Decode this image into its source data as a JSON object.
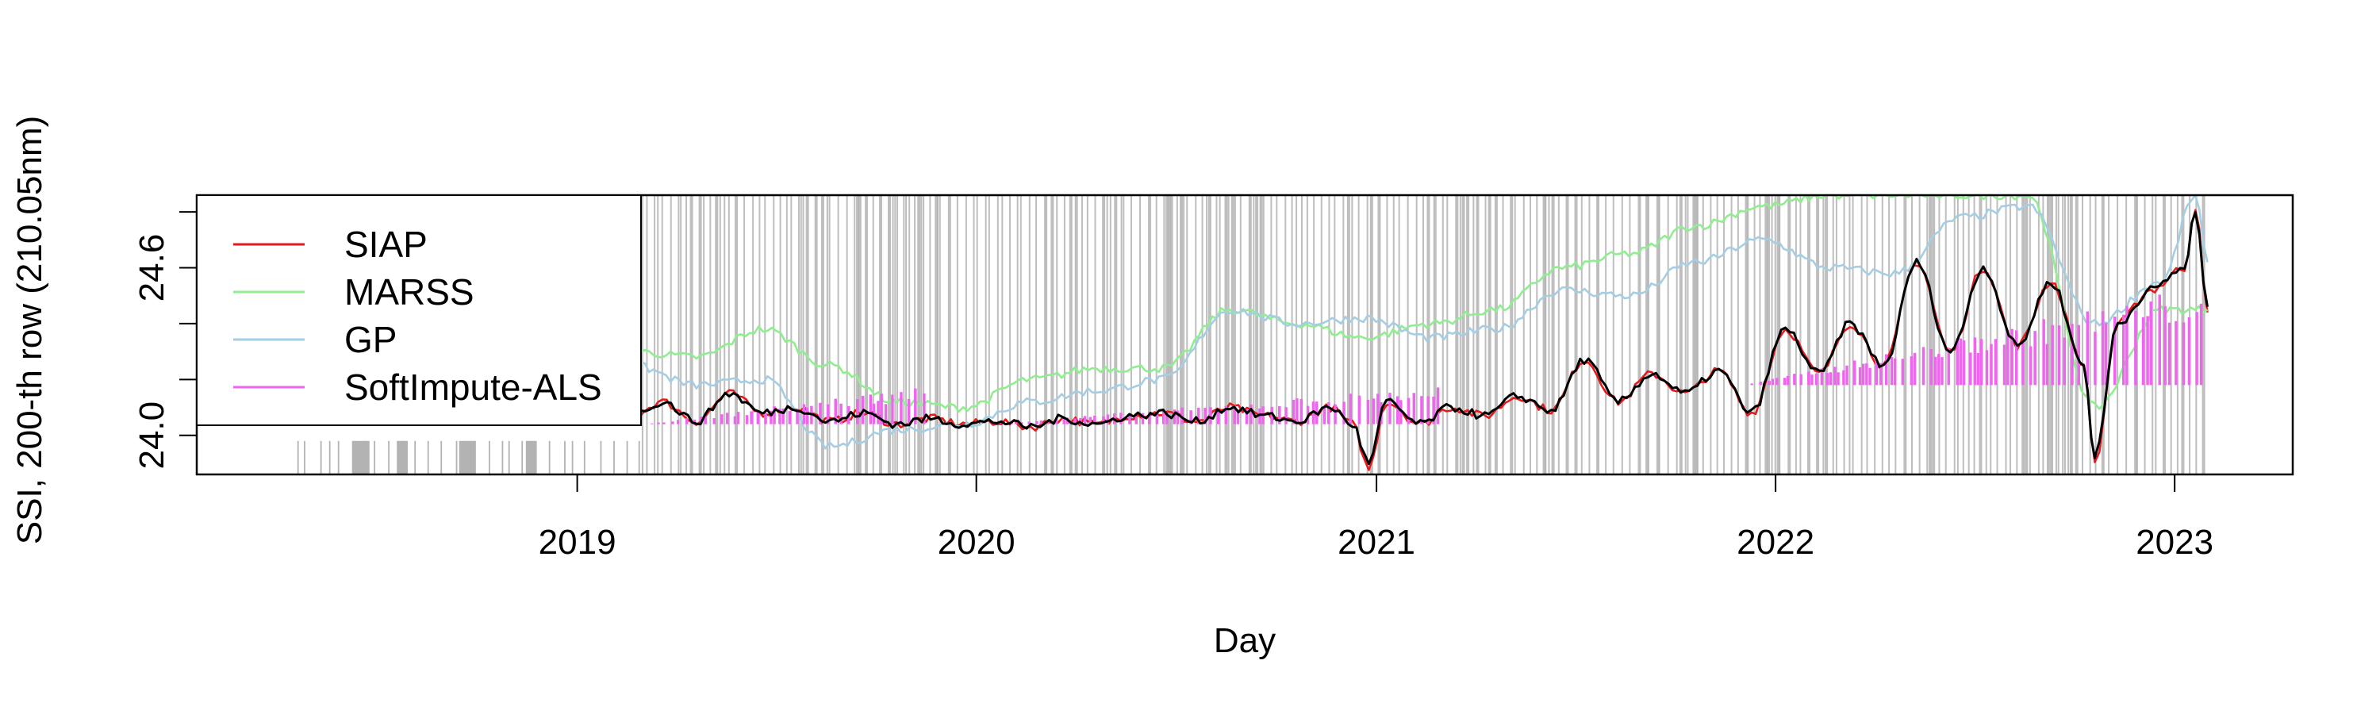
{
  "chart_data": {
    "type": "line",
    "xlabel": "Day",
    "ylabel": "SSI, 200-th row (210.05nm)",
    "x_type": "date",
    "xlim": [
      "2018-01-18",
      "2023-04-19"
    ],
    "ylim": [
      23.86,
      24.86
    ],
    "x_ticks": [
      {
        "date": "2019-01-01",
        "label": "2019"
      },
      {
        "date": "2020-01-01",
        "label": "2020"
      },
      {
        "date": "2021-01-01",
        "label": "2021"
      },
      {
        "date": "2022-01-01",
        "label": "2022"
      },
      {
        "date": "2023-01-01",
        "label": "2023"
      }
    ],
    "y_ticks": [
      {
        "value": 24.0,
        "label": "24.0"
      },
      {
        "value": 24.6,
        "label": "24.6"
      }
    ],
    "y_minor_ticks": [
      24.2,
      24.4,
      24.8
    ],
    "grid": false,
    "legend_position": "top-left",
    "series": [
      {
        "name": "SIAP",
        "color": "#e41a1c",
        "points": [
          [
            "2018-12-20",
            24.06
          ],
          [
            "2019-01-20",
            24.09
          ],
          [
            "2019-02-20",
            24.07
          ],
          [
            "2019-03-20",
            24.12
          ],
          [
            "2019-04-20",
            24.05
          ],
          [
            "2019-05-20",
            24.15
          ],
          [
            "2019-06-20",
            24.08
          ],
          [
            "2019-07-20",
            24.1
          ],
          [
            "2019-08-20",
            24.05
          ],
          [
            "2019-09-20",
            24.08
          ],
          [
            "2019-10-20",
            24.04
          ],
          [
            "2019-11-20",
            24.06
          ],
          [
            "2019-12-20",
            24.04
          ],
          [
            "2020-01-20",
            24.05
          ],
          [
            "2020-02-20",
            24.03
          ],
          [
            "2020-03-20",
            24.06
          ],
          [
            "2020-04-20",
            24.04
          ],
          [
            "2020-05-20",
            24.07
          ],
          [
            "2020-06-20",
            24.08
          ],
          [
            "2020-07-20",
            24.05
          ],
          [
            "2020-08-20",
            24.1
          ],
          [
            "2020-09-20",
            24.07
          ],
          [
            "2020-10-20",
            24.05
          ],
          [
            "2020-11-20",
            24.1
          ],
          [
            "2020-12-10",
            24.04
          ],
          [
            "2020-12-25",
            23.88
          ],
          [
            "2021-01-10",
            24.12
          ],
          [
            "2021-02-10",
            24.04
          ],
          [
            "2021-03-10",
            24.1
          ],
          [
            "2021-04-10",
            24.07
          ],
          [
            "2021-05-10",
            24.14
          ],
          [
            "2021-06-10",
            24.09
          ],
          [
            "2021-07-10",
            24.27
          ],
          [
            "2021-08-10",
            24.12
          ],
          [
            "2021-09-10",
            24.22
          ],
          [
            "2021-10-10",
            24.15
          ],
          [
            "2021-11-10",
            24.23
          ],
          [
            "2021-12-10",
            24.08
          ],
          [
            "2022-01-10",
            24.38
          ],
          [
            "2022-02-10",
            24.22
          ],
          [
            "2022-03-10",
            24.4
          ],
          [
            "2022-04-10",
            24.25
          ],
          [
            "2022-05-10",
            24.62
          ],
          [
            "2022-06-10",
            24.3
          ],
          [
            "2022-07-10",
            24.6
          ],
          [
            "2022-08-10",
            24.32
          ],
          [
            "2022-09-10",
            24.55
          ],
          [
            "2022-10-10",
            24.25
          ],
          [
            "2022-10-20",
            23.9
          ],
          [
            "2022-11-10",
            24.4
          ],
          [
            "2022-12-10",
            24.52
          ],
          [
            "2023-01-10",
            24.6
          ],
          [
            "2023-01-20",
            24.82
          ],
          [
            "2023-01-31",
            24.44
          ]
        ]
      },
      {
        "name": "MARSS",
        "color": "#90ee90",
        "points": [
          [
            "2018-12-20",
            24.22
          ],
          [
            "2019-02-20",
            24.3
          ],
          [
            "2019-04-20",
            24.28
          ],
          [
            "2019-06-20",
            24.38
          ],
          [
            "2019-08-20",
            24.25
          ],
          [
            "2019-10-20",
            24.12
          ],
          [
            "2019-12-20",
            24.1
          ],
          [
            "2020-02-20",
            24.2
          ],
          [
            "2020-04-20",
            24.24
          ],
          [
            "2020-06-20",
            24.24
          ],
          [
            "2020-08-20",
            24.45
          ],
          [
            "2020-10-20",
            24.4
          ],
          [
            "2020-12-20",
            24.35
          ],
          [
            "2021-02-20",
            24.4
          ],
          [
            "2021-04-20",
            24.45
          ],
          [
            "2021-06-20",
            24.6
          ],
          [
            "2021-08-20",
            24.65
          ],
          [
            "2021-10-20",
            24.75
          ],
          [
            "2021-12-20",
            24.82
          ],
          [
            "2022-02-20",
            24.86
          ],
          [
            "2022-04-20",
            24.86
          ],
          [
            "2022-06-20",
            24.86
          ],
          [
            "2022-08-20",
            24.86
          ],
          [
            "2022-10-20",
            24.1
          ],
          [
            "2022-12-20",
            24.45
          ],
          [
            "2023-01-31",
            24.45
          ]
        ]
      },
      {
        "name": "GP",
        "color": "#a6cee3",
        "points": [
          [
            "2018-12-20",
            24.2
          ],
          [
            "2019-02-20",
            24.25
          ],
          [
            "2019-04-20",
            24.18
          ],
          [
            "2019-06-20",
            24.2
          ],
          [
            "2019-08-20",
            23.96
          ],
          [
            "2019-10-20",
            24.02
          ],
          [
            "2019-12-20",
            24.04
          ],
          [
            "2020-02-20",
            24.12
          ],
          [
            "2020-04-20",
            24.16
          ],
          [
            "2020-06-20",
            24.2
          ],
          [
            "2020-08-20",
            24.45
          ],
          [
            "2020-10-20",
            24.4
          ],
          [
            "2020-12-20",
            24.42
          ],
          [
            "2021-02-20",
            24.35
          ],
          [
            "2021-04-20",
            24.38
          ],
          [
            "2021-06-20",
            24.52
          ],
          [
            "2021-08-20",
            24.5
          ],
          [
            "2021-10-20",
            24.62
          ],
          [
            "2021-12-20",
            24.7
          ],
          [
            "2022-02-20",
            24.6
          ],
          [
            "2022-04-20",
            24.58
          ],
          [
            "2022-06-20",
            24.78
          ],
          [
            "2022-08-20",
            24.82
          ],
          [
            "2022-10-20",
            24.4
          ],
          [
            "2022-12-20",
            24.55
          ],
          [
            "2023-01-20",
            24.86
          ],
          [
            "2023-01-31",
            24.62
          ]
        ]
      },
      {
        "name": "SoftImpute-ALS",
        "color": "#ee66ee",
        "segments": [
          {
            "start": "2019-03-01",
            "end": "2019-11-15",
            "from": 24.04,
            "to": 24.18
          },
          {
            "start": "2020-01-10",
            "end": "2021-03-01",
            "from": 24.04,
            "to": 24.18
          },
          {
            "start": "2021-12-01",
            "end": "2023-01-31",
            "from": 24.18,
            "to": 24.55
          }
        ]
      },
      {
        "name": "",
        "color": "#000000",
        "points": [
          [
            "2018-12-20",
            24.06
          ],
          [
            "2019-01-20",
            24.09
          ],
          [
            "2019-02-20",
            24.07
          ],
          [
            "2019-03-20",
            24.12
          ],
          [
            "2019-04-20",
            24.05
          ],
          [
            "2019-05-20",
            24.15
          ],
          [
            "2019-06-20",
            24.08
          ],
          [
            "2019-07-20",
            24.1
          ],
          [
            "2019-08-20",
            24.05
          ],
          [
            "2019-09-20",
            24.08
          ],
          [
            "2019-10-20",
            24.04
          ],
          [
            "2019-11-20",
            24.06
          ],
          [
            "2019-12-20",
            24.04
          ],
          [
            "2020-01-20",
            24.05
          ],
          [
            "2020-02-20",
            24.03
          ],
          [
            "2020-03-20",
            24.06
          ],
          [
            "2020-04-20",
            24.04
          ],
          [
            "2020-05-20",
            24.07
          ],
          [
            "2020-06-20",
            24.08
          ],
          [
            "2020-07-20",
            24.05
          ],
          [
            "2020-08-20",
            24.1
          ],
          [
            "2020-09-20",
            24.07
          ],
          [
            "2020-10-20",
            24.05
          ],
          [
            "2020-11-20",
            24.1
          ],
          [
            "2020-12-10",
            24.04
          ],
          [
            "2020-12-25",
            23.9
          ],
          [
            "2021-01-10",
            24.12
          ],
          [
            "2021-02-10",
            24.04
          ],
          [
            "2021-03-10",
            24.1
          ],
          [
            "2021-04-10",
            24.07
          ],
          [
            "2021-05-10",
            24.14
          ],
          [
            "2021-06-10",
            24.09
          ],
          [
            "2021-07-10",
            24.27
          ],
          [
            "2021-08-10",
            24.12
          ],
          [
            "2021-09-10",
            24.22
          ],
          [
            "2021-10-10",
            24.15
          ],
          [
            "2021-11-10",
            24.23
          ],
          [
            "2021-12-10",
            24.08
          ],
          [
            "2022-01-10",
            24.38
          ],
          [
            "2022-02-10",
            24.22
          ],
          [
            "2022-03-10",
            24.4
          ],
          [
            "2022-04-10",
            24.25
          ],
          [
            "2022-05-10",
            24.62
          ],
          [
            "2022-06-10",
            24.3
          ],
          [
            "2022-07-10",
            24.6
          ],
          [
            "2022-08-10",
            24.32
          ],
          [
            "2022-09-10",
            24.55
          ],
          [
            "2022-10-10",
            24.25
          ],
          [
            "2022-10-20",
            23.92
          ],
          [
            "2022-11-10",
            24.4
          ],
          [
            "2022-12-10",
            24.52
          ],
          [
            "2023-01-10",
            24.6
          ],
          [
            "2023-01-20",
            24.8
          ],
          [
            "2023-01-31",
            24.46
          ]
        ]
      }
    ],
    "missing_day_bands": {
      "color": "#b3b3b3",
      "ymin": 23.86,
      "ymax": 23.98,
      "early_ranges": [
        [
          "2018-06-10",
          "2018-06-25"
        ],
        [
          "2018-07-20",
          "2018-07-30"
        ],
        [
          "2018-09-15",
          "2018-09-30"
        ],
        [
          "2018-11-15",
          "2018-11-25"
        ]
      ],
      "full_height_start": "2019-03-01",
      "full_height_end": "2023-01-31"
    }
  }
}
